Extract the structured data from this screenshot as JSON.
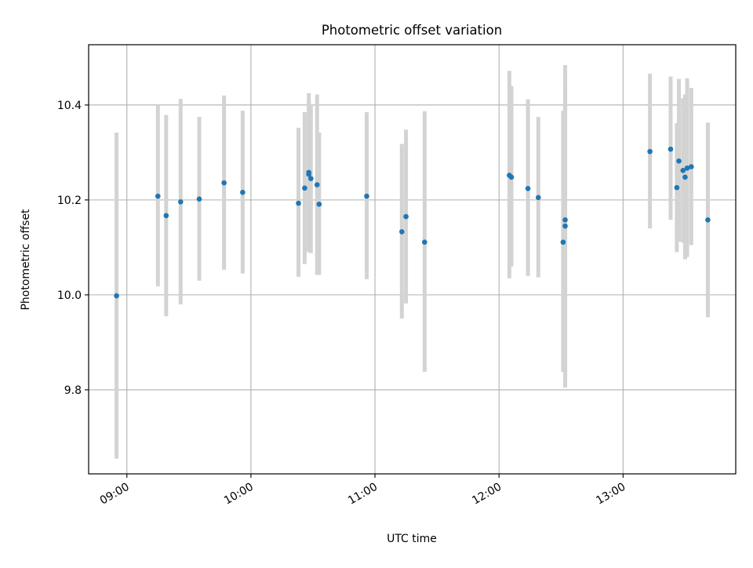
{
  "chart_data": {
    "type": "scatter",
    "title": "Photometric offset variation",
    "xlabel": "UTC time",
    "ylabel": "Photometric offset",
    "x_tick_labels": [
      "09:00",
      "10:00",
      "11:00",
      "12:00",
      "13:00"
    ],
    "x_tick_minutes": [
      540,
      600,
      660,
      720,
      780
    ],
    "y_ticks": [
      "9.8",
      "10.0",
      "10.2",
      "10.4"
    ],
    "xlim_minutes": [
      521.5,
      834.5
    ],
    "ylim": [
      9.623,
      10.527
    ],
    "grid": true,
    "colors": {
      "point": "#1f77b4",
      "errorbar": "#d3d3d3",
      "grid": "#b0b0b0"
    },
    "points": [
      {
        "t": "08:55",
        "y": 9.998,
        "lo": 9.655,
        "hi": 10.342
      },
      {
        "t": "09:15",
        "y": 10.208,
        "lo": 10.018,
        "hi": 10.4
      },
      {
        "t": "09:19",
        "y": 10.167,
        "lo": 9.955,
        "hi": 10.379
      },
      {
        "t": "09:26",
        "y": 10.196,
        "lo": 9.98,
        "hi": 10.413
      },
      {
        "t": "09:35",
        "y": 10.202,
        "lo": 10.03,
        "hi": 10.375
      },
      {
        "t": "09:47",
        "y": 10.236,
        "lo": 10.053,
        "hi": 10.42
      },
      {
        "t": "09:56",
        "y": 10.216,
        "lo": 10.045,
        "hi": 10.388
      },
      {
        "t": "10:23",
        "y": 10.193,
        "lo": 10.038,
        "hi": 10.352
      },
      {
        "t": "10:26",
        "y": 10.225,
        "lo": 10.065,
        "hi": 10.385
      },
      {
        "t": "10:28",
        "y": 10.254,
        "lo": 10.09,
        "hi": 10.41
      },
      {
        "t": "10:28",
        "y": 10.258,
        "lo": 10.095,
        "hi": 10.425
      },
      {
        "t": "10:29",
        "y": 10.245,
        "lo": 10.088,
        "hi": 10.402
      },
      {
        "t": "10:32",
        "y": 10.232,
        "lo": 10.042,
        "hi": 10.422
      },
      {
        "t": "10:33",
        "y": 10.191,
        "lo": 10.042,
        "hi": 10.342
      },
      {
        "t": "10:56",
        "y": 10.208,
        "lo": 10.033,
        "hi": 10.385
      },
      {
        "t": "11:13",
        "y": 10.133,
        "lo": 9.95,
        "hi": 10.318
      },
      {
        "t": "11:15",
        "y": 10.165,
        "lo": 9.982,
        "hi": 10.348
      },
      {
        "t": "11:24",
        "y": 10.111,
        "lo": 9.838,
        "hi": 10.387
      },
      {
        "t": "12:05",
        "y": 10.252,
        "lo": 10.035,
        "hi": 10.472
      },
      {
        "t": "12:06",
        "y": 10.248,
        "lo": 10.06,
        "hi": 10.44
      },
      {
        "t": "12:14",
        "y": 10.224,
        "lo": 10.04,
        "hi": 10.412
      },
      {
        "t": "12:19",
        "y": 10.205,
        "lo": 10.037,
        "hi": 10.375
      },
      {
        "t": "12:31",
        "y": 10.111,
        "lo": 9.838,
        "hi": 10.388
      },
      {
        "t": "12:32",
        "y": 10.158,
        "lo": 9.83,
        "hi": 10.43
      },
      {
        "t": "12:32",
        "y": 10.145,
        "lo": 9.805,
        "hi": 10.484
      },
      {
        "t": "13:13",
        "y": 10.302,
        "lo": 10.14,
        "hi": 10.466
      },
      {
        "t": "13:23",
        "y": 10.307,
        "lo": 10.158,
        "hi": 10.46
      },
      {
        "t": "13:26",
        "y": 10.226,
        "lo": 10.09,
        "hi": 10.362
      },
      {
        "t": "13:27",
        "y": 10.282,
        "lo": 10.112,
        "hi": 10.455
      },
      {
        "t": "13:29",
        "y": 10.262,
        "lo": 10.11,
        "hi": 10.414
      },
      {
        "t": "13:30",
        "y": 10.248,
        "lo": 10.075,
        "hi": 10.422
      },
      {
        "t": "13:31",
        "y": 10.267,
        "lo": 10.08,
        "hi": 10.456
      },
      {
        "t": "13:33",
        "y": 10.27,
        "lo": 10.105,
        "hi": 10.436
      },
      {
        "t": "13:41",
        "y": 10.158,
        "lo": 9.953,
        "hi": 10.363
      }
    ]
  }
}
